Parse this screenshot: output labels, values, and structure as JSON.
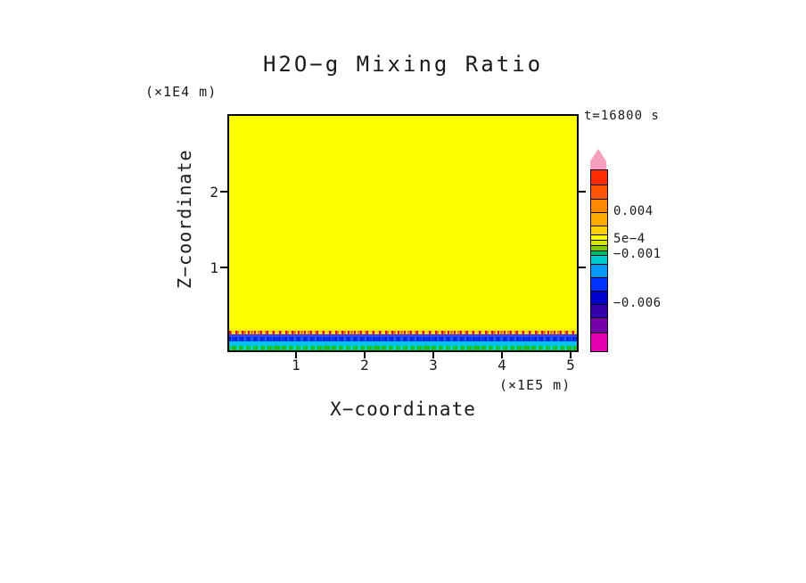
{
  "title": "H2O−g Mixing Ratio",
  "time_label": "t=16800 s",
  "axes": {
    "x_label": "X−coordinate",
    "x_unit": "(×1E5 m)",
    "x_ticks": [
      1,
      2,
      3,
      4,
      5
    ],
    "y_label": "Z−coordinate",
    "y_unit": "(×1E4 m)",
    "y_ticks": [
      2,
      1
    ]
  },
  "field": {
    "background_color": "#FFFF00",
    "bands": [
      {
        "name": "red-speckle",
        "pattern": "speckle",
        "height": 4,
        "colors": [
          "#EE1100",
          "#FF7700",
          "#FFDD00"
        ]
      },
      {
        "name": "blue-top",
        "pattern": "solid",
        "height": 3,
        "color": "#3344FF"
      },
      {
        "name": "blue-speckle",
        "pattern": "speckle",
        "height": 5,
        "colors": [
          "#0022CC",
          "#2255FF",
          "#0033EE"
        ]
      },
      {
        "name": "cyan-layer",
        "pattern": "solid",
        "height": 5,
        "color": "#00C4EE"
      },
      {
        "name": "green-speckle",
        "pattern": "speckle",
        "height": 5,
        "colors": [
          "#00CC55",
          "#00DDC0",
          "#22BB22"
        ]
      }
    ]
  },
  "colorbar": {
    "arrow_color": "#F4A0BE",
    "segments": [
      {
        "color": "#FF2A00",
        "height": 16
      },
      {
        "color": "#FF5500",
        "height": 16
      },
      {
        "color": "#FF8800",
        "height": 15
      },
      {
        "color": "#FFAA00",
        "height": 15
      },
      {
        "color": "#FFD000",
        "height": 10
      },
      {
        "color": "#FFFF00",
        "height": 6
      },
      {
        "color": "#D6E800",
        "height": 6
      },
      {
        "color": "#7FCC00",
        "height": 6
      },
      {
        "color": "#00BB66",
        "height": 5
      },
      {
        "color": "#00CCCC",
        "height": 10
      },
      {
        "color": "#0099FF",
        "height": 15
      },
      {
        "color": "#0033FF",
        "height": 15
      },
      {
        "color": "#0000CC",
        "height": 15
      },
      {
        "color": "#3300AA",
        "height": 15
      },
      {
        "color": "#7700AA",
        "height": 17
      },
      {
        "color": "#E200B0",
        "height": 21
      }
    ],
    "labels": [
      {
        "text": "0.004",
        "after": 3
      },
      {
        "text": "5e−4",
        "after": 6
      },
      {
        "text": "−0.001",
        "after": 9
      },
      {
        "text": "−0.006",
        "after": 13
      }
    ]
  },
  "chart_data": {
    "type": "heatmap",
    "title": "H2O−g Mixing Ratio",
    "xlabel": "X−coordinate (×1E5 m)",
    "ylabel": "Z−coordinate (×1E4 m)",
    "x_ticks": [
      1,
      2,
      3,
      4,
      5
    ],
    "y_ticks": [
      1,
      2
    ],
    "x_range_m": [
      0,
      520000
    ],
    "z_range_m": [
      0,
      26000
    ],
    "time_s": 16800,
    "colorbar_labeled_levels": [
      0.004,
      0.0005,
      -0.001,
      -0.006
    ],
    "colorbar_orientation": "vertical-right",
    "grid": false,
    "field_description": "Mixing ratio is nearly uniform (yellow band of the scale, between 5e-4 and 0.004) throughout the interior of the domain; a thin surface layer at the bottom shows a speckled positive maximum (red/orange) directly above negative bands (blue ≈ −0.001 to −0.006, cyan ≈ −0.001) with a green/cyan speckled band at the lowest model level."
  }
}
